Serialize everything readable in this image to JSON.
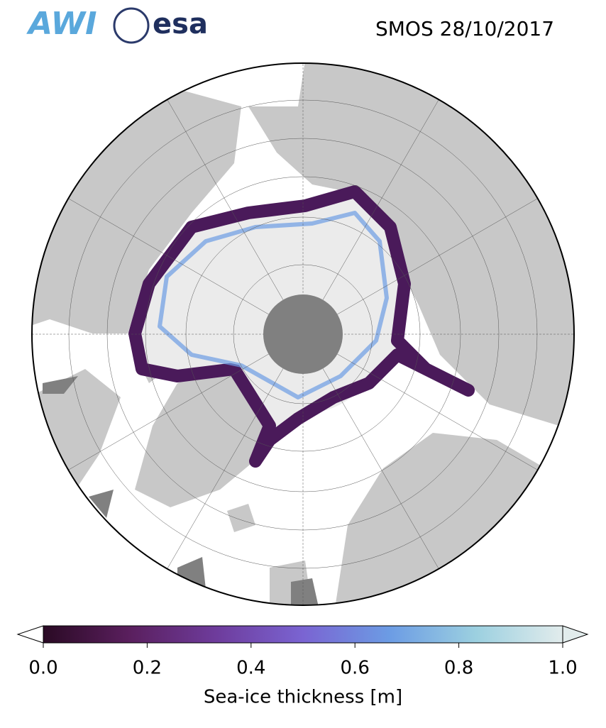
{
  "title": "SMOS 28/10/2017",
  "logos": [
    "AWI",
    "esa"
  ],
  "colorbar": {
    "label": "Sea-ice thickness [m]",
    "lim": [
      0,
      1
    ],
    "ticks": [
      {
        "value": 0,
        "label": "0.0"
      },
      0.2,
      0.4,
      0.6,
      0.8,
      {
        "value": 1,
        "label": "1.0"
      }
    ],
    "colors": [
      "#2a0a24",
      "#5a1f5e",
      "#6e3c9c",
      "#7a64d2",
      "#6c9ce4",
      "#9cd0e0",
      "#e2ecec"
    ],
    "extend": "both"
  }
}
